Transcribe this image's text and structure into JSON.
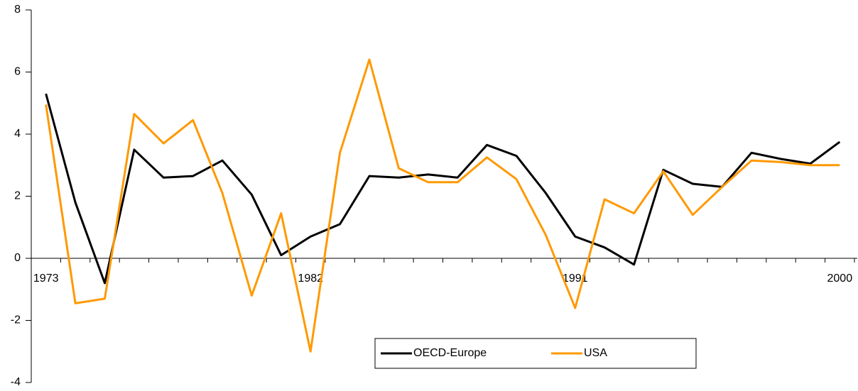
{
  "chart_data": {
    "type": "line",
    "categories": [
      "1973",
      null,
      null,
      null,
      null,
      null,
      null,
      null,
      null,
      "1982",
      null,
      null,
      null,
      null,
      null,
      null,
      null,
      null,
      "1991",
      null,
      null,
      null,
      null,
      null,
      null,
      null,
      null,
      "2000"
    ],
    "series": [
      {
        "name": "OECD-Europe",
        "color": "#000000",
        "values": [
          5.3,
          1.8,
          -0.8,
          3.5,
          2.6,
          2.65,
          3.15,
          2.05,
          0.1,
          0.7,
          1.1,
          2.65,
          2.6,
          2.7,
          2.6,
          3.65,
          3.3,
          2.1,
          0.7,
          0.35,
          -0.2,
          2.85,
          2.4,
          2.3,
          3.4,
          3.2,
          3.05,
          3.75
        ]
      },
      {
        "name": "USA",
        "color": "#ff9900",
        "values": [
          4.95,
          -1.45,
          -1.3,
          4.65,
          3.7,
          4.45,
          2.1,
          -1.2,
          1.45,
          -3.0,
          3.4,
          6.4,
          2.9,
          2.45,
          2.45,
          3.25,
          2.55,
          0.75,
          -1.6,
          1.9,
          1.45,
          2.8,
          1.4,
          2.3,
          3.15,
          3.1,
          3.0,
          3.0
        ]
      }
    ],
    "ylim": [
      -4,
      8
    ],
    "yticks": [
      -4,
      -2,
      0,
      2,
      4,
      6,
      8
    ],
    "grid": false,
    "legend": "bottom"
  }
}
